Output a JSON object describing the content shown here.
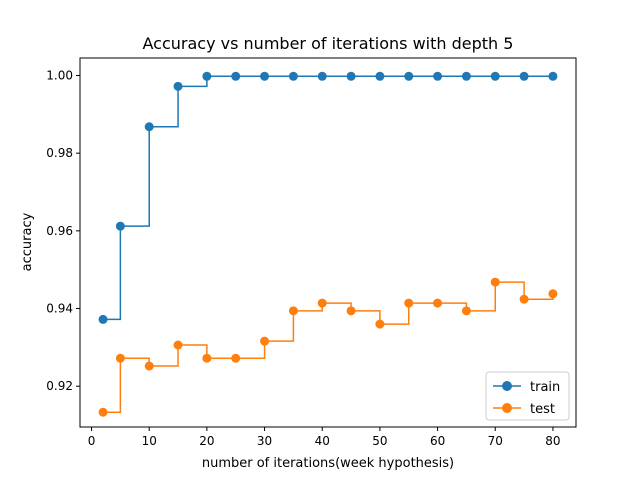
{
  "chart_data": {
    "type": "line",
    "title": "Accuracy vs number of iterations with depth 5",
    "xlabel": "number of iterations(week hypothesis)",
    "ylabel": "accuracy",
    "xlim": [
      -2,
      84
    ],
    "ylim": [
      0.9095,
      1.0045
    ],
    "x_ticks": [
      0,
      10,
      20,
      30,
      40,
      50,
      60,
      70,
      80
    ],
    "y_ticks": [
      0.92,
      0.94,
      0.96,
      0.98,
      1.0
    ],
    "y_tick_labels": [
      "0.92",
      "0.94",
      "0.96",
      "0.98",
      "1.00"
    ],
    "x": [
      2,
      5,
      10,
      15,
      20,
      25,
      30,
      35,
      40,
      45,
      50,
      55,
      60,
      65,
      70,
      75,
      80
    ],
    "step": "post",
    "legend_position": "lower-right",
    "grid": false,
    "series": [
      {
        "name": "train",
        "color": "#1f77b4",
        "values": [
          0.9372,
          0.9612,
          0.9868,
          0.9972,
          0.9998,
          0.9998,
          0.9998,
          0.9998,
          0.9998,
          0.9998,
          0.9998,
          0.9998,
          0.9998,
          0.9998,
          0.9998,
          0.9998,
          0.9998
        ]
      },
      {
        "name": "test",
        "color": "#ff7f0e",
        "values": [
          0.9133,
          0.9272,
          0.9252,
          0.9306,
          0.9272,
          0.9272,
          0.9316,
          0.9394,
          0.9414,
          0.9394,
          0.936,
          0.9414,
          0.9414,
          0.9394,
          0.9468,
          0.9424,
          0.9438
        ]
      }
    ]
  }
}
